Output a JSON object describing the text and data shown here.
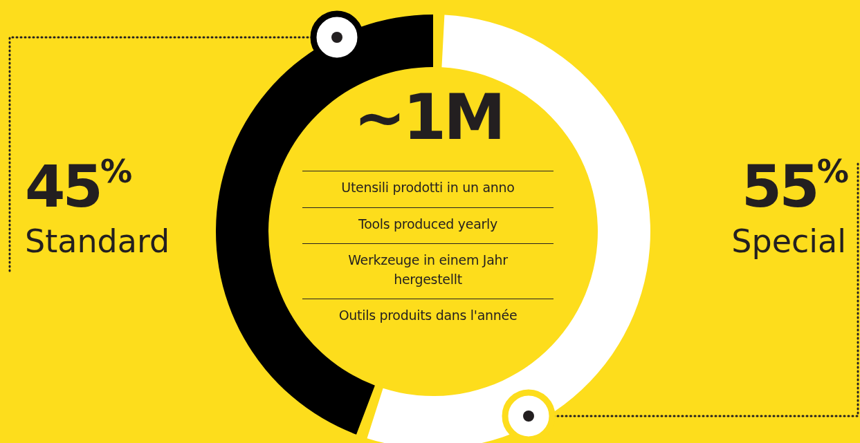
{
  "chart_data": {
    "type": "donut",
    "categories": [
      "Standard",
      "Special"
    ],
    "values": [
      45,
      55
    ],
    "colors": [
      "#000000",
      "#ffffff"
    ],
    "value_labels": [
      "45$^{%}$",
      "55$^{%}$"
    ],
    "annotations": [
      "~1M",
      "Utensili prodotti in un anno",
      "Tools produced yearly",
      "Werkzeuge in einem Jahr hergestellt",
      "Outils produits dans l'année"
    ]
  }
}
